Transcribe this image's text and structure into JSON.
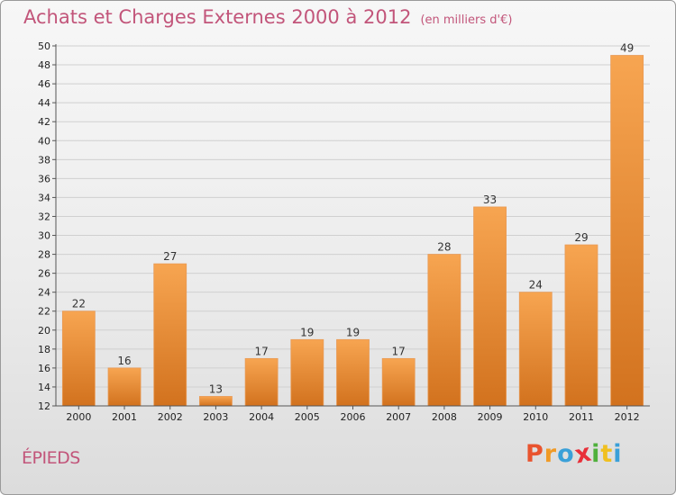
{
  "header": {
    "title": "Achats et Charges Externes 2000 à 2012",
    "subtitle": "(en milliers d'€)"
  },
  "footer": {
    "commune": "ÉPIEDS",
    "logo_letters": [
      "P",
      "r",
      "o",
      "x",
      "i",
      "t",
      "i"
    ]
  },
  "colors": {
    "bar_top": "#f7a551",
    "bar_bottom": "#d2721e",
    "title": "#c2557a",
    "logo": [
      "#e9542f",
      "#f09a25",
      "#3aa0d8",
      "#e8303a",
      "#4fb03c",
      "#f0c020",
      "#3aa0d8"
    ]
  },
  "chart_data": {
    "type": "bar",
    "title": "Achats et Charges Externes 2000 à 2012",
    "subtitle": "(en milliers d'€)",
    "categories": [
      "2000",
      "2001",
      "2002",
      "2003",
      "2004",
      "2005",
      "2006",
      "2007",
      "2008",
      "2009",
      "2010",
      "2011",
      "2012"
    ],
    "values": [
      22,
      16,
      27,
      13,
      17,
      19,
      19,
      17,
      28,
      33,
      24,
      29,
      49
    ],
    "ylim": [
      12,
      50
    ],
    "yticks": [
      12,
      14,
      16,
      18,
      20,
      22,
      24,
      26,
      28,
      30,
      32,
      34,
      36,
      38,
      40,
      42,
      44,
      46,
      48,
      50
    ],
    "grid": true,
    "data_labels": true
  }
}
